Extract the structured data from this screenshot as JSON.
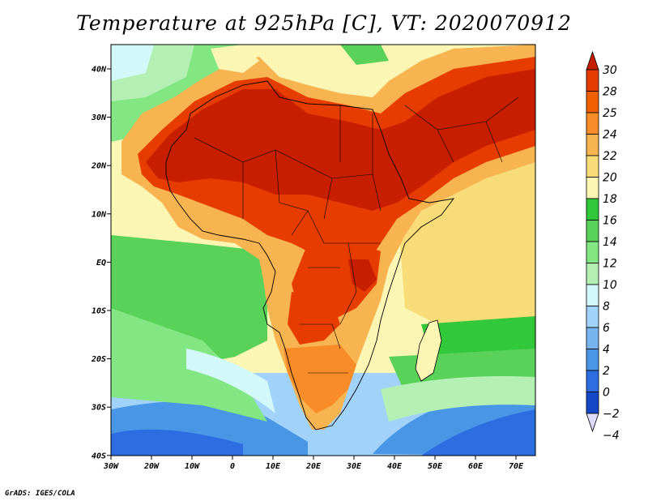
{
  "title": "Temperature at 925hPa [C], VT: 2020070912",
  "footer": "GrADS: IGES/COLA",
  "axes": {
    "lon_ticks": [
      "30W",
      "20W",
      "10W",
      "0",
      "10E",
      "20E",
      "30E",
      "40E",
      "50E",
      "60E",
      "70E"
    ],
    "lat_ticks": [
      "40N",
      "30N",
      "20N",
      "10N",
      "EQ",
      "10S",
      "20S",
      "30S",
      "40S"
    ]
  },
  "colorbar": {
    "levels": [
      "30",
      "28",
      "25",
      "24",
      "22",
      "20",
      "18",
      "16",
      "14",
      "12",
      "10",
      "8",
      "6",
      "4",
      "2",
      "0",
      "−2",
      "−4"
    ],
    "colors": [
      "#c81e00",
      "#e63c00",
      "#f06000",
      "#f88c28",
      "#f8b450",
      "#f8dc78",
      "#fcf6b4",
      "#32c83c",
      "#5ad25a",
      "#82e682",
      "#b4f0b4",
      "#d2f8fa",
      "#a0d2fa",
      "#78b4f0",
      "#4a96e6",
      "#2c6ee2",
      "#1446c8",
      "#0a1e8c"
    ]
  },
  "regions": {
    "ocean_south": "#a0d2fa",
    "ocean_deep_south": "#4a96e6",
    "ocean_tropics": "#5ad25a",
    "land_sahara": "#c81e00",
    "land_warm": "#e63c00",
    "land_mild": "#f8b450",
    "indian_ocean": "#f8dc78"
  }
}
